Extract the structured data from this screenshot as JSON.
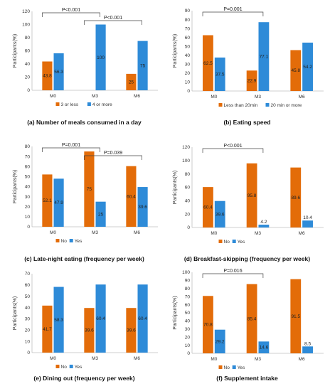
{
  "figure": {
    "colors": {
      "series1": "#E36C09",
      "series2": "#2E8BD8"
    },
    "panels": [
      {
        "id": "a",
        "caption": "(a) Number of meals consumed in a day",
        "chart_data": {
          "type": "bar",
          "categories": [
            "M0",
            "M3",
            "M6"
          ],
          "series": [
            {
              "name": "3 or less",
              "values": [
                43.8,
                0,
                25
              ],
              "labels": [
                "43.8",
                "",
                "25"
              ]
            },
            {
              "name": "4 or more",
              "values": [
                56.3,
                100,
                75
              ],
              "labels": [
                "56.3",
                "100",
                "75"
              ]
            }
          ],
          "ylabel": "Participants(%)",
          "ylim": [
            0,
            120
          ],
          "yticks": [
            0,
            20,
            40,
            60,
            80,
            100,
            120
          ],
          "brackets": [
            {
              "from": 0,
              "to": 1,
              "label": "P<0.001"
            },
            {
              "from": 1,
              "to": 2,
              "label": "P<0.001"
            }
          ],
          "legend_position": "bottom"
        }
      },
      {
        "id": "b",
        "caption": "(b) Eating speed",
        "chart_data": {
          "type": "bar",
          "categories": [
            "M0",
            "M3",
            "M6"
          ],
          "series": [
            {
              "name": "Less than 20min",
              "values": [
                62.5,
                22.9,
                45.8
              ],
              "labels": [
                "62.5",
                "22.9",
                "45.8"
              ]
            },
            {
              "name": "20 min or more",
              "values": [
                37.5,
                77.1,
                54.2
              ],
              "labels": [
                "37.5",
                "77.1",
                "54.2"
              ]
            }
          ],
          "ylabel": "Participants(%)",
          "ylim": [
            0,
            90
          ],
          "yticks": [
            0,
            10,
            20,
            30,
            40,
            50,
            60,
            70,
            80,
            90
          ],
          "brackets": [
            {
              "from": 0,
              "to": 1,
              "label": "P=0.001"
            }
          ],
          "legend_position": "bottom"
        }
      },
      {
        "id": "c",
        "caption": "(c) Late-night eating (frequency per week)",
        "chart_data": {
          "type": "bar",
          "categories": [
            "M0",
            "M3",
            "M6"
          ],
          "series": [
            {
              "name": "No",
              "values": [
                52.1,
                75,
                60.4
              ],
              "labels": [
                "52.1",
                "75",
                "60.4"
              ]
            },
            {
              "name": "Yes",
              "values": [
                47.9,
                25,
                39.6
              ],
              "labels": [
                "47.9",
                "25",
                "39.6"
              ]
            }
          ],
          "ylabel": "Participants(%)",
          "ylim": [
            0,
            80
          ],
          "yticks": [
            0,
            10,
            20,
            30,
            40,
            50,
            60,
            70,
            80
          ],
          "brackets": [
            {
              "from": 0,
              "to": 1,
              "label": "P=0.001"
            },
            {
              "from": 1,
              "to": 2,
              "label": "P=0.039"
            }
          ],
          "legend_position": "bottom"
        }
      },
      {
        "id": "d",
        "caption": "(d) Breakfast-skipping (frequency per week)",
        "chart_data": {
          "type": "bar",
          "categories": [
            "M0",
            "M3",
            "M6"
          ],
          "series": [
            {
              "name": "No",
              "values": [
                60.4,
                95.8,
                89.6
              ],
              "labels": [
                "60.4",
                "95.8",
                "89.6"
              ]
            },
            {
              "name": "Yes",
              "values": [
                39.6,
                4.2,
                10.4
              ],
              "labels": [
                "39.6",
                "4.2",
                "10.4"
              ]
            }
          ],
          "ylabel": "Participants(%)",
          "ylim": [
            0,
            120
          ],
          "yticks": [
            0,
            20,
            40,
            60,
            80,
            100,
            120
          ],
          "brackets": [
            {
              "from": 0,
              "to": 1,
              "label": "P<0.001"
            }
          ],
          "legend_position": "bottom"
        }
      },
      {
        "id": "e",
        "caption": "(e) Dining out (frequency per week)",
        "chart_data": {
          "type": "bar",
          "categories": [
            "M0",
            "M3",
            "M6"
          ],
          "series": [
            {
              "name": "No",
              "values": [
                41.7,
                39.6,
                39.6
              ],
              "labels": [
                "41.7",
                "39.6",
                "39.6"
              ]
            },
            {
              "name": "Yes",
              "values": [
                58.3,
                60.4,
                60.4
              ],
              "labels": [
                "58.3",
                "60.4",
                "60.4"
              ]
            }
          ],
          "ylabel": "Participants(%)",
          "ylim": [
            0,
            70
          ],
          "yticks": [
            0,
            10,
            20,
            30,
            40,
            50,
            60,
            70
          ],
          "brackets": [],
          "legend_position": "bottom"
        }
      },
      {
        "id": "f",
        "caption": "(f) Supplement intake",
        "chart_data": {
          "type": "bar",
          "categories": [
            "M0",
            "M3",
            "M6"
          ],
          "series": [
            {
              "name": "No",
              "values": [
                70.8,
                85.4,
                91.5
              ],
              "labels": [
                "70.8",
                "85.4",
                "91.5"
              ]
            },
            {
              "name": "Yes",
              "values": [
                29.2,
                14.6,
                8.5
              ],
              "labels": [
                "29.2",
                "14.6",
                "8.5"
              ]
            }
          ],
          "ylabel": "Participants(%)",
          "ylim": [
            0,
            100
          ],
          "yticks": [
            0,
            10,
            20,
            30,
            40,
            50,
            60,
            70,
            80,
            90,
            100
          ],
          "brackets": [
            {
              "from": 0,
              "to": 1,
              "label": "P=0.016"
            }
          ],
          "legend_position": "bottom"
        }
      }
    ]
  }
}
